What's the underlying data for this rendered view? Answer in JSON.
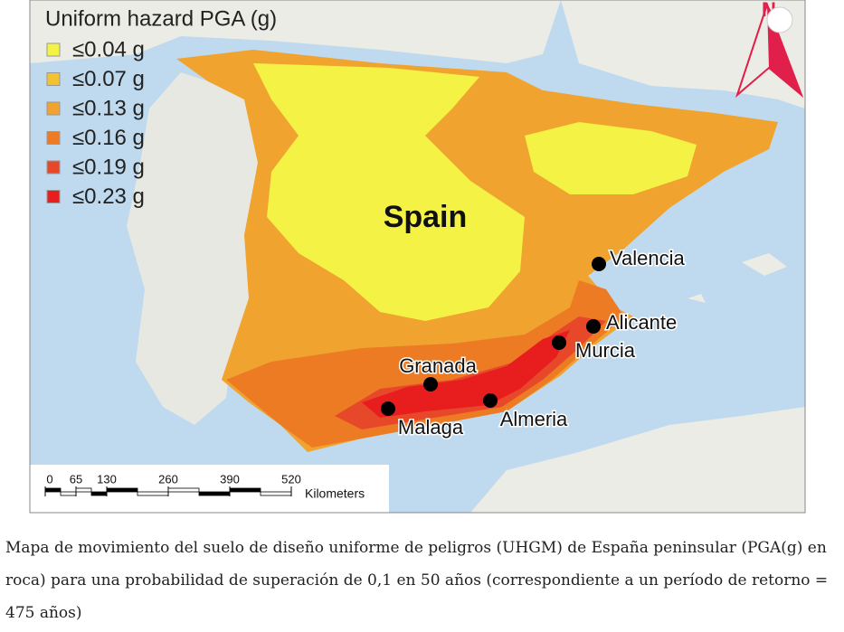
{
  "map": {
    "legend": {
      "title": "Uniform hazard PGA (g)",
      "items": [
        {
          "label": "≤0.04 g",
          "color": "#f4f244"
        },
        {
          "label": "≤0.07 g",
          "color": "#f3c230"
        },
        {
          "label": "≤0.13 g",
          "color": "#f0a32e"
        },
        {
          "label": "≤0.16 g",
          "color": "#ec7b24"
        },
        {
          "label": "≤0.19 g",
          "color": "#e8482a"
        },
        {
          "label": "≤0.23 g",
          "color": "#e81e1e"
        }
      ]
    },
    "country": "Spain",
    "cities": [
      "Valencia",
      "Alicante",
      "Murcia",
      "Granada",
      "Malaga",
      "Almeria"
    ],
    "scale": {
      "ticks": [
        0,
        65,
        130,
        260,
        390,
        520
      ],
      "unit": "Kilometers"
    },
    "north": "N"
  },
  "caption": "Mapa de movimiento del suelo de diseño uniforme de peligros (UHGM) de España peninsular (PGA(g) en roca) para una probabilidad de superación de 0,1 en 50 años (correspondiente a un período de retorno = 475 años)"
}
